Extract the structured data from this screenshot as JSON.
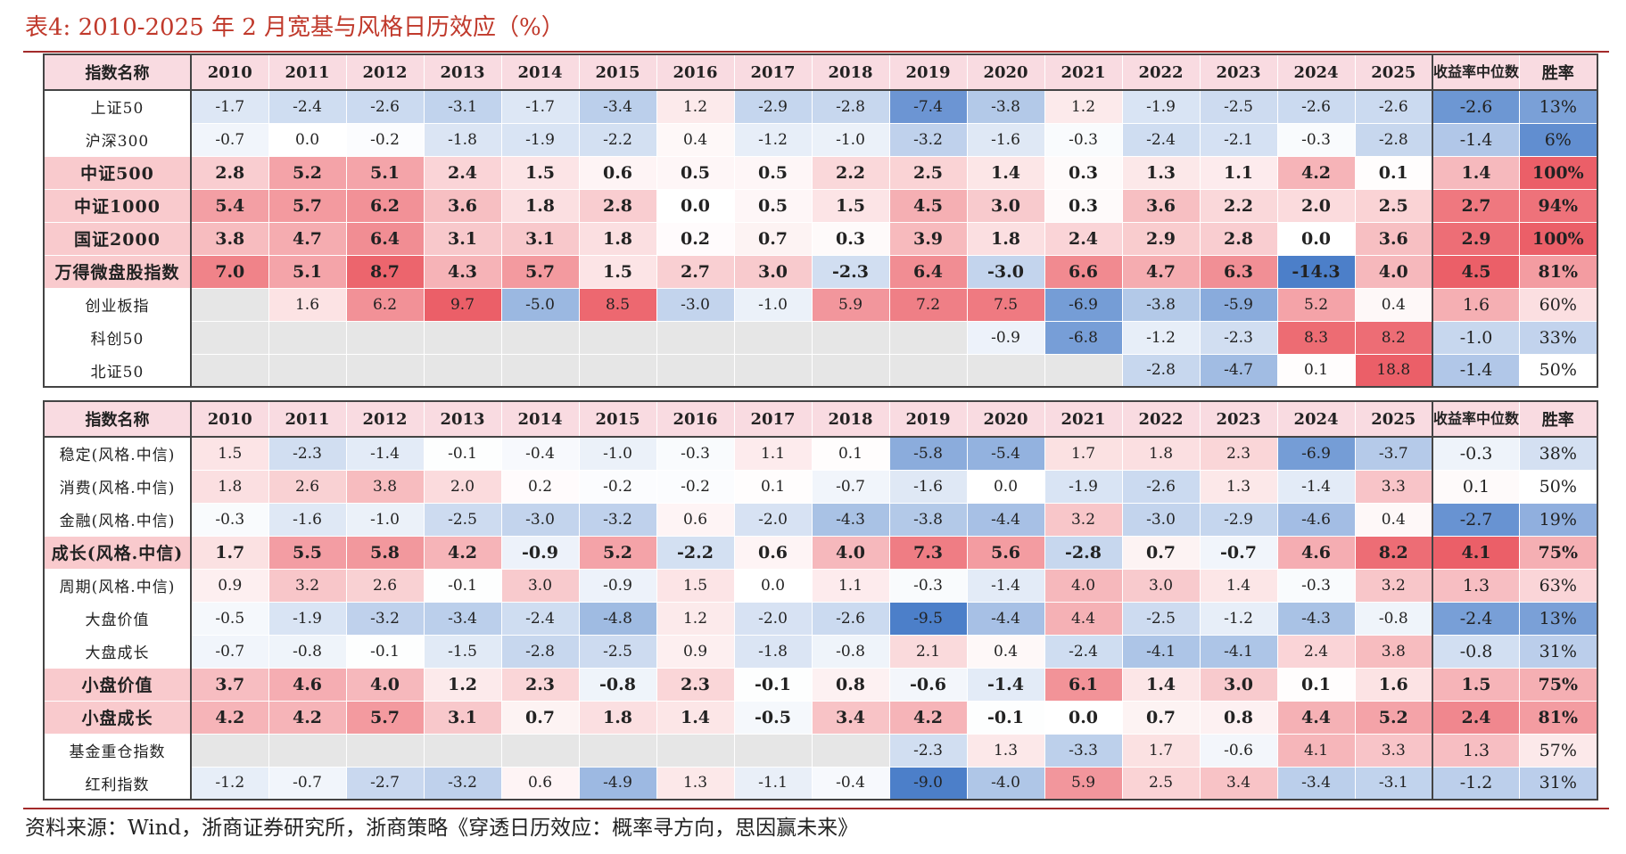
{
  "title": "表4:  2010-2025 年 2 月宽基与风格日历效应（%）",
  "source": "资料来源：Wind，浙商证券研究所，浙商策略《穿透日历效应：概率寻方向，思因赢未来》",
  "colors": {
    "pos": "#e8434d",
    "neg": "#2c68c0",
    "empty": "#e6e6e6",
    "header": "#f9dbe1",
    "title": "#c0392b"
  },
  "columns": {
    "name": "指数名称",
    "years": [
      "2010",
      "2011",
      "2012",
      "2013",
      "2014",
      "2015",
      "2016",
      "2017",
      "2018",
      "2019",
      "2020",
      "2021",
      "2022",
      "2023",
      "2024",
      "2025"
    ],
    "median": "收益率中位数",
    "win": "胜率"
  },
  "table1": {
    "rows": [
      {
        "name": "上证50",
        "bold": false,
        "values": [
          "-1.7",
          "-2.4",
          "-2.6",
          "-3.1",
          "-1.7",
          "-3.4",
          "1.2",
          "-2.9",
          "-2.8",
          "-7.4",
          "-3.8",
          "1.2",
          "-1.9",
          "-2.5",
          "-2.6",
          "-2.6"
        ],
        "median": "-2.6",
        "win": "13%"
      },
      {
        "name": "沪深300",
        "bold": false,
        "values": [
          "-0.7",
          "0.0",
          "-0.2",
          "-1.8",
          "-1.9",
          "-2.2",
          "0.4",
          "-1.2",
          "-1.0",
          "-3.2",
          "-1.6",
          "-0.3",
          "-2.4",
          "-2.1",
          "-0.3",
          "-2.8"
        ],
        "median": "-1.4",
        "win": "6%"
      },
      {
        "name": "中证500",
        "bold": true,
        "values": [
          "2.8",
          "5.2",
          "5.1",
          "2.4",
          "1.5",
          "0.6",
          "0.5",
          "0.5",
          "2.2",
          "2.5",
          "1.4",
          "0.3",
          "1.3",
          "1.1",
          "4.2",
          "0.1"
        ],
        "median": "1.4",
        "win": "100%"
      },
      {
        "name": "中证1000",
        "bold": true,
        "values": [
          "5.4",
          "5.7",
          "6.2",
          "3.6",
          "1.8",
          "2.8",
          "0.0",
          "0.5",
          "1.5",
          "4.5",
          "3.0",
          "0.3",
          "3.6",
          "2.2",
          "2.0",
          "2.5"
        ],
        "median": "2.7",
        "win": "94%"
      },
      {
        "name": "国证2000",
        "bold": true,
        "values": [
          "3.8",
          "4.7",
          "6.4",
          "3.1",
          "3.1",
          "1.8",
          "0.2",
          "0.7",
          "0.3",
          "3.9",
          "1.8",
          "2.4",
          "2.9",
          "2.8",
          "0.0",
          "3.6"
        ],
        "median": "2.9",
        "win": "100%"
      },
      {
        "name": "万得微盘股指数",
        "bold": true,
        "values": [
          "7.0",
          "5.1",
          "8.7",
          "4.3",
          "5.7",
          "1.5",
          "2.7",
          "3.0",
          "-2.3",
          "6.4",
          "-3.0",
          "6.6",
          "4.7",
          "6.3",
          "-14.3",
          "4.0"
        ],
        "median": "4.5",
        "win": "81%"
      },
      {
        "name": "创业板指",
        "bold": false,
        "values": [
          "",
          "1.6",
          "6.2",
          "9.7",
          "-5.0",
          "8.5",
          "-3.0",
          "-1.0",
          "5.9",
          "7.2",
          "7.5",
          "-6.9",
          "-3.8",
          "-5.9",
          "5.2",
          "0.4"
        ],
        "median": "1.6",
        "win": "60%"
      },
      {
        "name": "科创50",
        "bold": false,
        "values": [
          "",
          "",
          "",
          "",
          "",
          "",
          "",
          "",
          "",
          "",
          "-0.9",
          "-6.8",
          "-1.2",
          "-2.3",
          "8.3",
          "8.2"
        ],
        "median": "-1.0",
        "win": "33%"
      },
      {
        "name": "北证50",
        "bold": false,
        "values": [
          "",
          "",
          "",
          "",
          "",
          "",
          "",
          "",
          "",
          "",
          "",
          "",
          "-2.8",
          "-4.7",
          "0.1",
          "18.8"
        ],
        "median": "-1.4",
        "win": "50%"
      }
    ]
  },
  "table2": {
    "rows": [
      {
        "name": "稳定(风格.中信)",
        "bold": false,
        "values": [
          "1.5",
          "-2.3",
          "-1.4",
          "-0.1",
          "-0.4",
          "-1.0",
          "-0.3",
          "1.1",
          "0.1",
          "-5.8",
          "-5.4",
          "1.7",
          "1.8",
          "2.3",
          "-6.9",
          "-3.7"
        ],
        "median": "-0.3",
        "win": "38%"
      },
      {
        "name": "消费(风格.中信)",
        "bold": false,
        "values": [
          "1.8",
          "2.6",
          "3.8",
          "2.0",
          "0.2",
          "-0.2",
          "-0.2",
          "0.1",
          "-0.7",
          "-1.6",
          "0.0",
          "-1.9",
          "-2.6",
          "1.3",
          "-1.4",
          "3.3"
        ],
        "median": "0.1",
        "win": "50%"
      },
      {
        "name": "金融(风格.中信)",
        "bold": false,
        "values": [
          "-0.3",
          "-1.6",
          "-1.0",
          "-2.5",
          "-3.0",
          "-3.2",
          "0.6",
          "-2.0",
          "-4.3",
          "-3.8",
          "-4.4",
          "3.2",
          "-3.0",
          "-2.9",
          "-4.6",
          "0.4"
        ],
        "median": "-2.7",
        "win": "19%"
      },
      {
        "name": "成长(风格.中信)",
        "bold": true,
        "values": [
          "1.7",
          "5.5",
          "5.8",
          "4.2",
          "-0.9",
          "5.2",
          "-2.2",
          "0.6",
          "4.0",
          "7.3",
          "5.6",
          "-2.8",
          "0.7",
          "-0.7",
          "4.6",
          "8.2"
        ],
        "median": "4.1",
        "win": "75%"
      },
      {
        "name": "周期(风格.中信)",
        "bold": false,
        "values": [
          "0.9",
          "3.2",
          "2.6",
          "-0.1",
          "3.0",
          "-0.9",
          "1.5",
          "0.0",
          "1.1",
          "-0.3",
          "-1.4",
          "4.0",
          "3.0",
          "1.4",
          "-0.3",
          "3.2"
        ],
        "median": "1.3",
        "win": "63%"
      },
      {
        "name": "大盘价值",
        "bold": false,
        "values": [
          "-0.5",
          "-1.9",
          "-3.2",
          "-3.4",
          "-2.4",
          "-4.8",
          "1.2",
          "-2.0",
          "-2.6",
          "-9.5",
          "-4.4",
          "4.4",
          "-2.5",
          "-1.2",
          "-4.3",
          "-0.8"
        ],
        "median": "-2.4",
        "win": "13%"
      },
      {
        "name": "大盘成长",
        "bold": false,
        "values": [
          "-0.7",
          "-0.8",
          "-0.1",
          "-1.5",
          "-2.8",
          "-2.5",
          "0.9",
          "-1.8",
          "-0.8",
          "2.1",
          "0.4",
          "-2.4",
          "-4.1",
          "-4.1",
          "2.4",
          "3.8"
        ],
        "median": "-0.8",
        "win": "31%"
      },
      {
        "name": "小盘价值",
        "bold": true,
        "values": [
          "3.7",
          "4.6",
          "4.0",
          "1.2",
          "2.3",
          "-0.8",
          "2.3",
          "-0.1",
          "0.8",
          "-0.6",
          "-1.4",
          "6.1",
          "1.4",
          "3.0",
          "0.1",
          "1.6"
        ],
        "median": "1.5",
        "win": "75%"
      },
      {
        "name": "小盘成长",
        "bold": true,
        "values": [
          "4.2",
          "4.2",
          "5.7",
          "3.1",
          "0.7",
          "1.8",
          "1.4",
          "-0.5",
          "3.4",
          "4.2",
          "-0.1",
          "0.0",
          "0.7",
          "0.8",
          "4.4",
          "5.2"
        ],
        "median": "2.4",
        "win": "81%"
      },
      {
        "name": "基金重仓指数",
        "bold": false,
        "values": [
          "",
          "",
          "",
          "",
          "",
          "",
          "",
          "",
          "",
          "-2.3",
          "1.3",
          "-3.3",
          "1.7",
          "-0.6",
          "4.1",
          "3.3"
        ],
        "median": "1.3",
        "win": "57%"
      },
      {
        "name": "红利指数",
        "bold": false,
        "values": [
          "-1.2",
          "-0.7",
          "-2.7",
          "-3.2",
          "0.6",
          "-4.9",
          "1.3",
          "-1.1",
          "-0.4",
          "-9.0",
          "-4.0",
          "5.9",
          "2.5",
          "3.4",
          "-3.4",
          "-3.1"
        ],
        "median": "-1.2",
        "win": "31%"
      }
    ]
  }
}
